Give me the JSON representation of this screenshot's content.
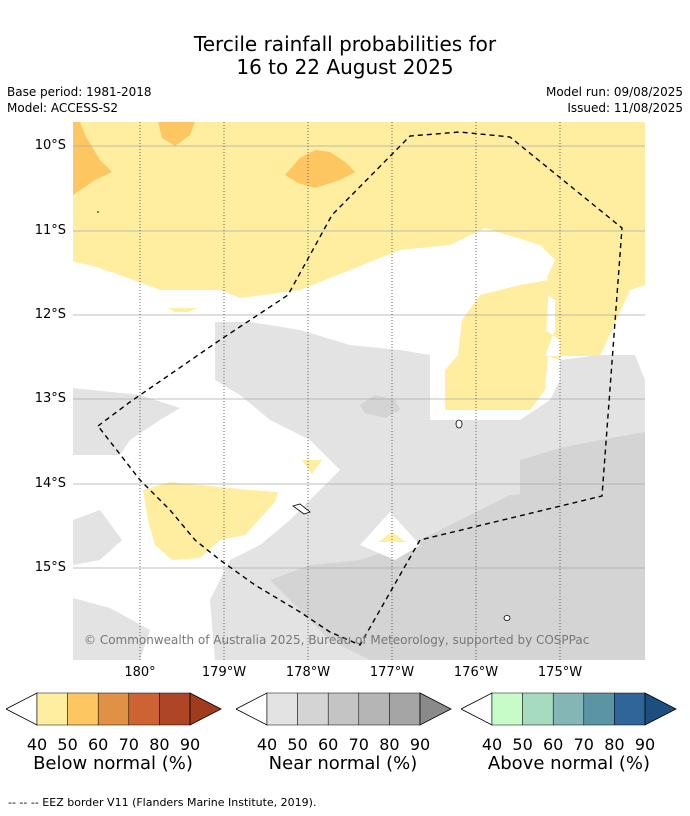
{
  "title_line1": "Tercile rainfall probabilities for",
  "title_line2": "16 to 22 August 2025",
  "base_period": "Base period: 1981-2018",
  "model": "Model: ACCESS-S2",
  "model_run": "Model run: 09/08/2025",
  "issued": "Issued: 11/08/2025",
  "lat_labels": [
    "10°S",
    "11°S",
    "12°S",
    "13°S",
    "14°S",
    "15°S"
  ],
  "lon_labels": [
    "180°",
    "179°W",
    "178°W",
    "177°W",
    "176°W",
    "175°W"
  ],
  "copyright": "© Commonwealth of Australia 2025, Bureau of Meteorology, supported by COSPPac",
  "legends": [
    {
      "title": "Below normal (%)",
      "ticks": [
        "40",
        "50",
        "60",
        "70",
        "80",
        "90"
      ],
      "colors": [
        "#ffeda0",
        "#fec661",
        "#e09145",
        "#cd6333",
        "#ae4526",
        "#a13b1e"
      ]
    },
    {
      "title": "Near normal (%)",
      "ticks": [
        "40",
        "50",
        "60",
        "70",
        "80",
        "90"
      ],
      "colors": [
        "#e3e3e3",
        "#d4d4d4",
        "#c4c4c4",
        "#b5b5b5",
        "#a5a5a5",
        "#8a8a8a"
      ]
    },
    {
      "title": "Above normal (%)",
      "ticks": [
        "40",
        "50",
        "60",
        "70",
        "80",
        "90"
      ],
      "colors": [
        "#c7fcc9",
        "#a6dbc0",
        "#83b6b4",
        "#5b95a3",
        "#2f6598",
        "#1c4f7d"
      ]
    }
  ],
  "footnote": "--  --  -- EEZ border V11 (Flanders Marine Institute, 2019)."
}
